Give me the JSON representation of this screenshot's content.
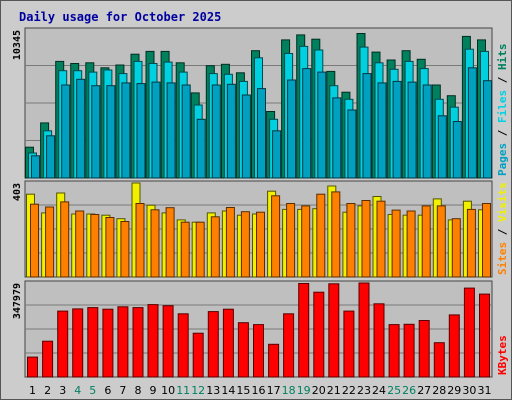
{
  "chart_data": {
    "type": "bar",
    "title": "Daily usage for October 2025",
    "categories": [
      "1",
      "2",
      "3",
      "4",
      "5",
      "6",
      "7",
      "8",
      "9",
      "10",
      "11",
      "12",
      "13",
      "14",
      "15",
      "16",
      "17",
      "18",
      "19",
      "20",
      "21",
      "22",
      "23",
      "24",
      "25",
      "26",
      "27",
      "28",
      "29",
      "30",
      "31"
    ],
    "weekend_days": [
      "4",
      "5",
      "11",
      "12",
      "18",
      "19",
      "25",
      "26"
    ],
    "panels": [
      {
        "key": "pages_files_hits",
        "scale_label": "10345",
        "ymax": 10345,
        "legend": [
          "Pages",
          "Files",
          "Hits"
        ],
        "series": [
          {
            "name": "Hits",
            "color": "#00805c",
            "values": [
              2150,
              3850,
              8150,
              8000,
              8050,
              7700,
              7900,
              8650,
              8850,
              8850,
              8050,
              5950,
              7850,
              7950,
              7350,
              8900,
              4650,
              9650,
              10000,
              9700,
              7450,
              6000,
              10100,
              8800,
              8250,
              8900,
              8300,
              6500,
              5750,
              9900,
              9650
            ]
          },
          {
            "name": "Files",
            "color": "#00d0e0",
            "values": [
              1750,
              3300,
              7500,
              7500,
              7400,
              7550,
              7300,
              8150,
              8000,
              8100,
              7400,
              5100,
              7300,
              7250,
              6750,
              8400,
              4100,
              8700,
              9200,
              8950,
              6450,
              5500,
              9150,
              8050,
              7600,
              8150,
              7650,
              5500,
              4950,
              9000,
              8850
            ]
          },
          {
            "name": "Pages",
            "color": "#00a0c0",
            "values": [
              1550,
              2950,
              6500,
              6900,
              6450,
              6450,
              6650,
              6600,
              6700,
              6650,
              6500,
              4100,
              6500,
              6550,
              5800,
              6250,
              3300,
              6850,
              7650,
              7400,
              5600,
              4750,
              7300,
              6650,
              6750,
              6700,
              6500,
              4350,
              3950,
              7700,
              6800
            ]
          }
        ]
      },
      {
        "key": "visits_sites",
        "scale_label": "403",
        "ymax": 403,
        "legend": [
          "Sites",
          "Visits"
        ],
        "series": [
          {
            "name": "Visits",
            "color": "#f0f000",
            "values": [
              355,
              275,
              360,
              270,
              270,
              265,
              250,
              409,
              308,
              275,
              245,
              235,
              275,
              283,
              265,
              270,
              368,
              290,
              290,
              293,
              390,
              278,
              305,
              345,
              268,
              265,
              265,
              335,
              245,
              325,
              288
            ]
          },
          {
            "name": "Sites",
            "color": "#ff8000",
            "values": [
              312,
              300,
              322,
              283,
              268,
              255,
              238,
              315,
              288,
              297,
              235,
              235,
              258,
              298,
              280,
              278,
              348,
              315,
              305,
              355,
              365,
              315,
              328,
              325,
              287,
              283,
              305,
              305,
              250,
              290,
              315
            ]
          }
        ]
      },
      {
        "key": "kbytes",
        "scale_label": "347979",
        "ymax": 347979,
        "legend": [
          "KBytes"
        ],
        "series": [
          {
            "name": "KBytes",
            "color": "#ff0000",
            "values": [
              73500,
              132500,
              244000,
              252000,
              257000,
              251000,
              260000,
              257000,
              268000,
              264000,
              234000,
              162000,
              242000,
              251000,
              201000,
              194000,
              121000,
              234000,
              346000,
              314000,
              345000,
              244000,
              349000,
              271000,
              194000,
              195000,
              209000,
              127000,
              230000,
              329000,
              307000
            ]
          }
        ]
      }
    ],
    "grid": true
  }
}
